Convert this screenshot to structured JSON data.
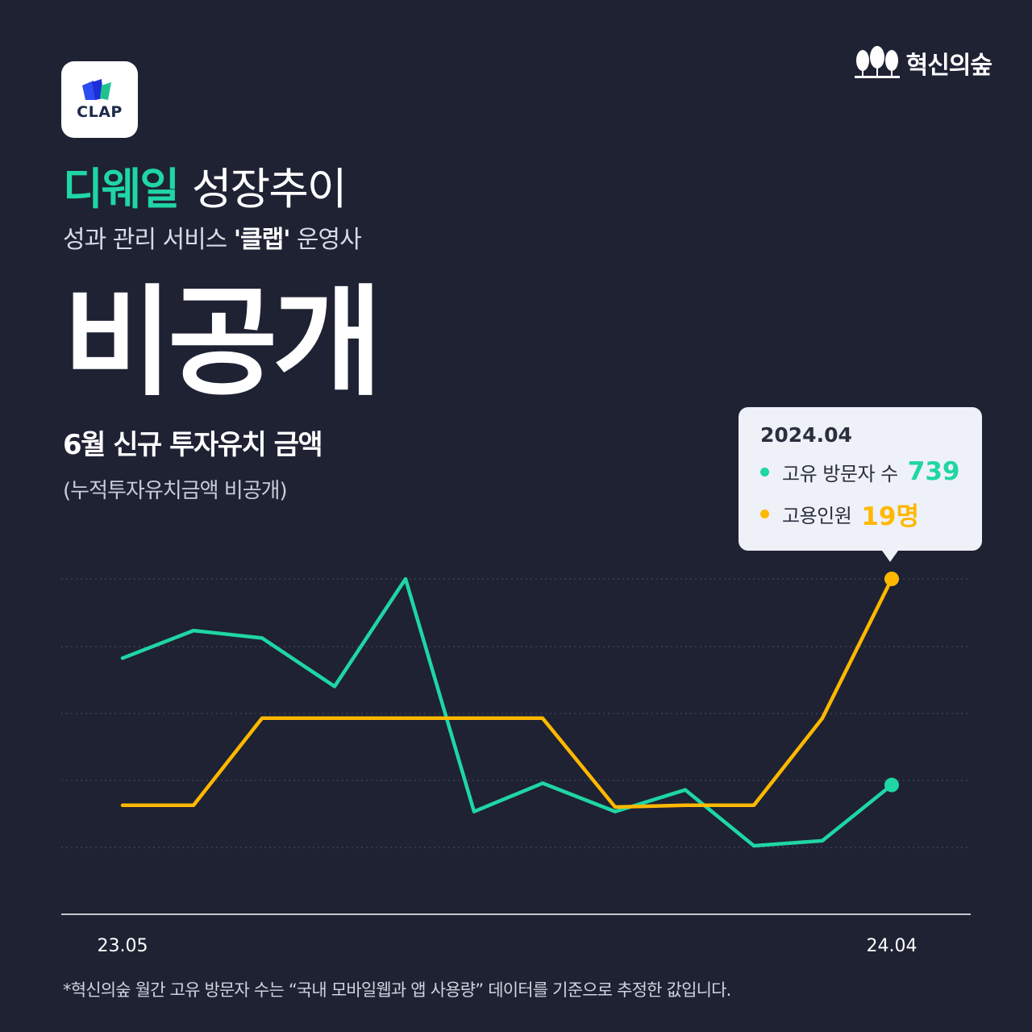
{
  "app": {
    "icon_name": "clap-logo-icon",
    "name": "CLAP"
  },
  "brand": {
    "icon_name": "forest-trees-icon",
    "label": "혁신의숲"
  },
  "header": {
    "company": "디웨일",
    "title_suffix": "성장추이",
    "subtitle_prefix": "성과 관리 서비스 ",
    "subtitle_service": "'클랩'",
    "subtitle_suffix": " 운영사"
  },
  "headline": {
    "value": "비공개",
    "caption": "6월 신규 투자유치 금액",
    "note": "(누적투자유치금액 비공개)"
  },
  "tooltip": {
    "date": "2024.04",
    "rows": [
      {
        "label": "고유 방문자 수",
        "value": "739",
        "color": "#1fd6a4"
      },
      {
        "label": "고용인원",
        "value": "19명",
        "color": "#ffb800"
      }
    ]
  },
  "colors": {
    "background": "#1e2233",
    "visitors": "#1fd6a4",
    "employees": "#ffb800"
  },
  "chart_data": {
    "type": "line",
    "x_tick_labels": [
      "23.05",
      "24.04"
    ],
    "x": [
      "23.05",
      "23.06",
      "23.07",
      "23.08",
      "23.09",
      "23.10",
      "23.11",
      "23.12",
      "24.01",
      "24.02",
      "24.03",
      "24.04"
    ],
    "series": [
      {
        "name": "고유 방문자 수",
        "color": "#1fd6a4",
        "values": [
          2260,
          2590,
          2500,
          1920,
          3210,
          420,
          760,
          420,
          680,
          10,
          70,
          739
        ]
      },
      {
        "name": "고용인원",
        "color": "#ffb800",
        "values": [
          6,
          6,
          11,
          11,
          11,
          11,
          11,
          5.9,
          6,
          6,
          11,
          19
        ]
      }
    ],
    "grid": "horizontal dotted",
    "highlight_index": 11
  },
  "footnote": "*혁신의숲 월간 고유 방문자 수는 “국내 모바일웹과 앱 사용량” 데이터를 기준으로 추정한 값입니다."
}
